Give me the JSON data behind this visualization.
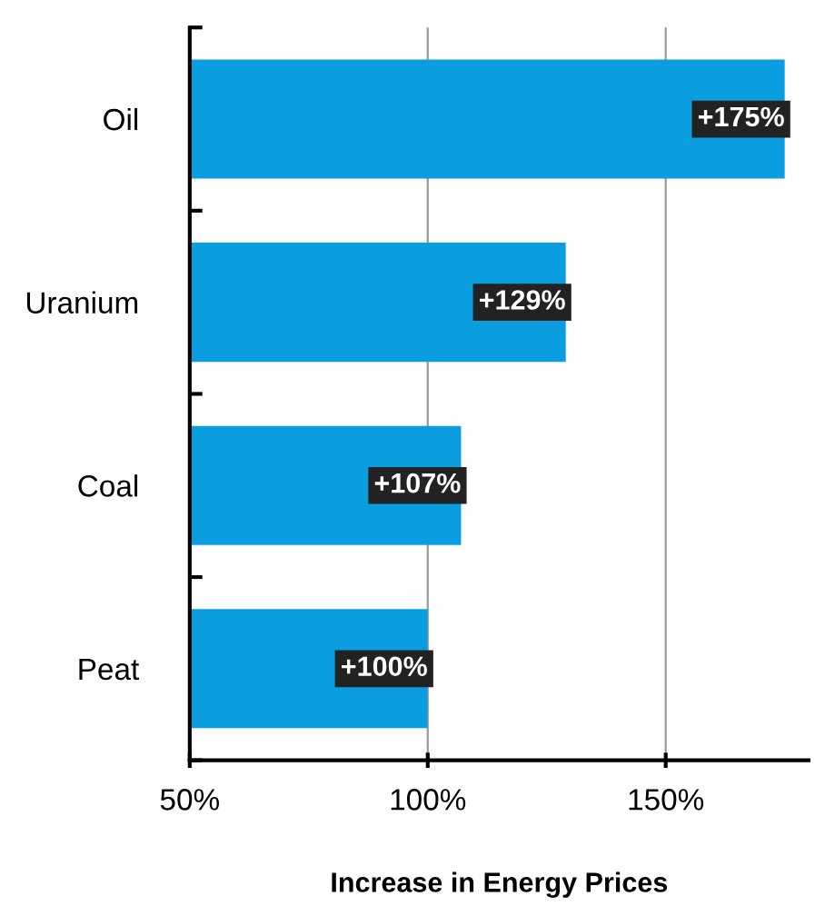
{
  "chart_data": {
    "type": "bar",
    "orientation": "horizontal",
    "xlabel": "Increase in Energy Prices",
    "categories": [
      "Oil",
      "Uranium",
      "Coal",
      "Peat"
    ],
    "values": [
      175,
      129,
      107,
      100
    ],
    "value_labels": [
      "+175%",
      "+129%",
      "+107%",
      "+100%"
    ],
    "color": "#0a9ee0",
    "xlim": [
      50,
      180
    ],
    "xticks": [
      {
        "value": 50,
        "label": "50%"
      },
      {
        "value": 100,
        "label": "100%"
      },
      {
        "value": 150,
        "label": "150%"
      }
    ],
    "grid": "x",
    "legend": false
  }
}
